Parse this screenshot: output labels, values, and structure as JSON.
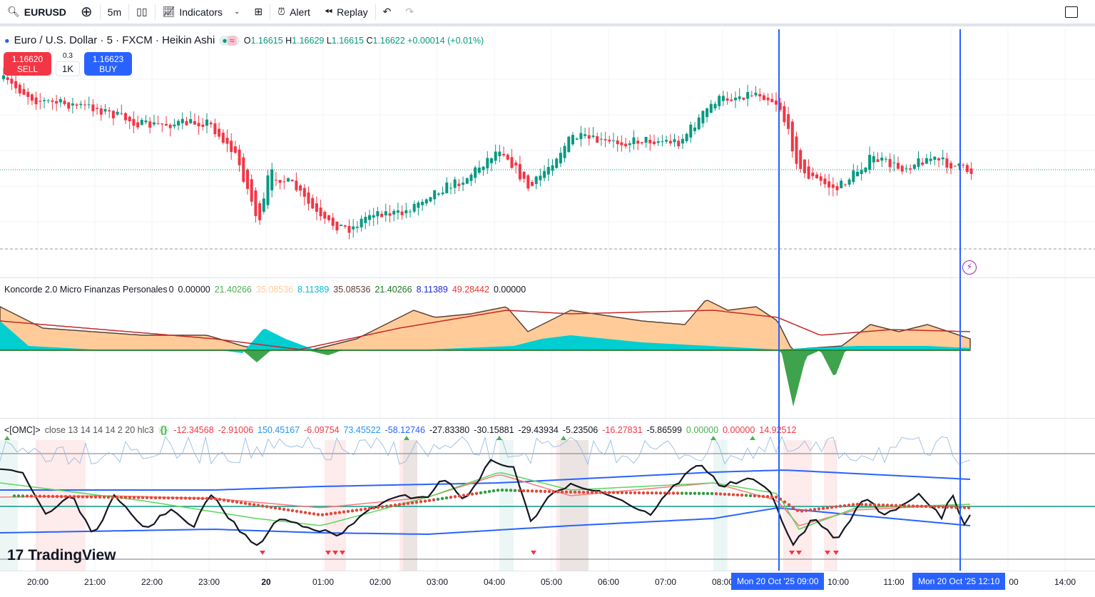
{
  "toolbar": {
    "symbol": "EURUSD",
    "interval": "5m",
    "indicators": "Indicators",
    "alert": "Alert",
    "replay": "Replay"
  },
  "main": {
    "title": "Euro / U.S. Dollar · 5 · FXCM · Heikin Ashi",
    "o_label": "O",
    "o": "1.16615",
    "h_label": "H",
    "h": "1.16629",
    "l_label": "L",
    "l": "1.16615",
    "c_label": "C",
    "c": "1.16622",
    "change": "+0.00014 (+0.01%)",
    "sell_price": "1.16620",
    "sell_label": "SELL",
    "buy_price": "1.16623",
    "buy_label": "BUY",
    "spread": "0.3",
    "qty": "1K"
  },
  "koncorde": {
    "name": "Koncorde 2.0 Micro Finanzas Personales",
    "param": "0",
    "values": [
      {
        "v": "0.00000",
        "color": "#131722"
      },
      {
        "v": "21.40266",
        "color": "#4caf50"
      },
      {
        "v": "35.08536",
        "color": "#ffcc99"
      },
      {
        "v": "8.11389",
        "color": "#00bcd4"
      },
      {
        "v": "35.08536",
        "color": "#5d4037"
      },
      {
        "v": "21.40266",
        "color": "#1b7a1b"
      },
      {
        "v": "8.11389",
        "color": "#1e2bd6"
      },
      {
        "v": "49.28442",
        "color": "#e53935"
      },
      {
        "v": "0.00000",
        "color": "#131722"
      }
    ]
  },
  "omc": {
    "name": "<[OMC]>",
    "params": "close 13 14 14 14 2 20 hlc3",
    "values": [
      {
        "v": "-12.34568",
        "color": "#f23645"
      },
      {
        "v": "-2.91006",
        "color": "#f23645"
      },
      {
        "v": "150.45167",
        "color": "#2196f3"
      },
      {
        "v": "-6.09754",
        "color": "#f23645"
      },
      {
        "v": "73.45522",
        "color": "#2196f3"
      },
      {
        "v": "-58.12746",
        "color": "#2962ff"
      },
      {
        "v": "-27.83380",
        "color": "#131722"
      },
      {
        "v": "-30.15881",
        "color": "#131722"
      },
      {
        "v": "-29.43934",
        "color": "#131722"
      },
      {
        "v": "-5.23506",
        "color": "#131722"
      },
      {
        "v": "-16.27831",
        "color": "#f23645"
      },
      {
        "v": "-5.86599",
        "color": "#131722"
      },
      {
        "v": "0.00000",
        "color": "#4caf50"
      },
      {
        "v": "0.00000",
        "color": "#f23645"
      },
      {
        "v": "14.92512",
        "color": "#f23645"
      }
    ]
  },
  "time_axis": [
    "20:00",
    "21:00",
    "22:00",
    "23:00",
    "20",
    "01:00",
    "02:00",
    "03:00",
    "04:00",
    "05:00",
    "06:00",
    "07:00",
    "08:00",
    "10:00",
    "11:00",
    "00",
    "14:00"
  ],
  "crosshair": [
    "Mon 20 Oct '25   09:00",
    "Mon 20 Oct '25   12:10"
  ],
  "brand": "TradingView",
  "colors": {
    "up": "#089981",
    "down": "#f23645",
    "accent": "#2962ff"
  }
}
